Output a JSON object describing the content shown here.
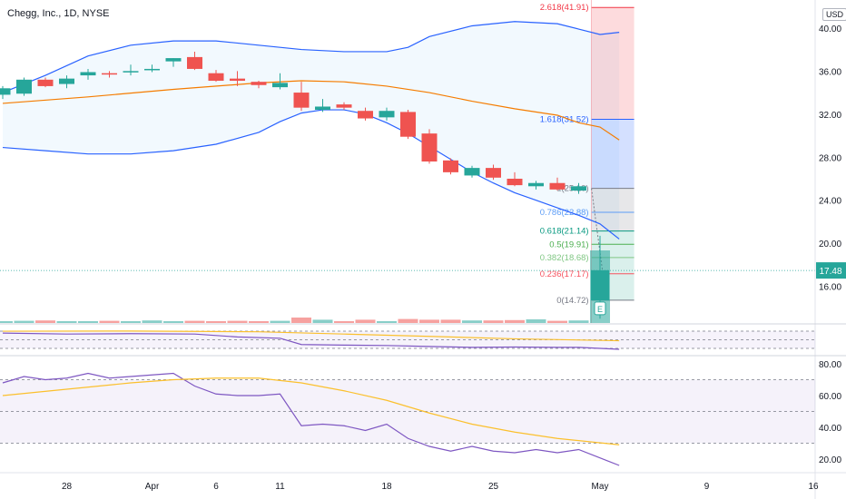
{
  "header": {
    "title": "Chegg, Inc., 1D, NYSE",
    "currency": "USD"
  },
  "colors": {
    "up": "#26a69a",
    "down": "#ef5350",
    "bb": "#2962ff",
    "basis": "#f57c00",
    "rsi": "#7e57c2",
    "rsi_ma": "#fbc02d"
  },
  "chart_data": [
    {
      "type": "candlestick",
      "panel": "price",
      "title": "Chegg, Inc., 1D, NYSE",
      "y_ticks": [
        16.0,
        20.0,
        24.0,
        28.0,
        32.0,
        36.0,
        40.0
      ],
      "ylim": [
        12.6,
        42.6
      ],
      "x_ticks": [
        {
          "label": "28",
          "day": 3
        },
        {
          "label": "Apr",
          "day": 7
        },
        {
          "label": "6",
          "day": 10
        },
        {
          "label": "11",
          "day": 13
        },
        {
          "label": "18",
          "day": 18
        },
        {
          "label": "25",
          "day": 23
        },
        {
          "label": "May",
          "day": 28
        },
        {
          "label": "9",
          "day": 33
        },
        {
          "label": "16",
          "day": 38
        }
      ],
      "xlim": [
        0,
        40
      ],
      "candles": [
        {
          "day": 0,
          "o": 33.8,
          "h": 34.6,
          "l": 33.4,
          "c": 34.4
        },
        {
          "day": 1,
          "o": 33.9,
          "h": 35.4,
          "l": 33.7,
          "c": 35.2
        },
        {
          "day": 2,
          "o": 35.2,
          "h": 35.4,
          "l": 34.5,
          "c": 34.6
        },
        {
          "day": 3,
          "o": 34.8,
          "h": 35.6,
          "l": 34.4,
          "c": 35.3
        },
        {
          "day": 4,
          "o": 35.6,
          "h": 36.2,
          "l": 35.2,
          "c": 35.9
        },
        {
          "day": 5,
          "o": 35.8,
          "h": 36.0,
          "l": 35.4,
          "c": 35.7
        },
        {
          "day": 6,
          "o": 35.9,
          "h": 36.6,
          "l": 35.6,
          "c": 36.0
        },
        {
          "day": 7,
          "o": 36.1,
          "h": 36.6,
          "l": 35.9,
          "c": 36.2
        },
        {
          "day": 8,
          "o": 36.9,
          "h": 37.2,
          "l": 36.4,
          "c": 37.2
        },
        {
          "day": 9,
          "o": 37.3,
          "h": 37.8,
          "l": 36.1,
          "c": 36.2
        },
        {
          "day": 10,
          "o": 35.8,
          "h": 36.1,
          "l": 35.0,
          "c": 35.1
        },
        {
          "day": 11,
          "o": 35.3,
          "h": 36.0,
          "l": 34.6,
          "c": 35.1
        },
        {
          "day": 12,
          "o": 35.0,
          "h": 35.1,
          "l": 34.4,
          "c": 34.7
        },
        {
          "day": 13,
          "o": 34.5,
          "h": 35.8,
          "l": 34.3,
          "c": 34.9
        },
        {
          "day": 14,
          "o": 34.0,
          "h": 35.0,
          "l": 32.3,
          "c": 32.6
        },
        {
          "day": 15,
          "o": 32.4,
          "h": 33.4,
          "l": 32.2,
          "c": 32.7
        },
        {
          "day": 16,
          "o": 32.9,
          "h": 33.1,
          "l": 32.4,
          "c": 32.6
        },
        {
          "day": 17,
          "o": 32.3,
          "h": 32.6,
          "l": 31.4,
          "c": 31.6
        },
        {
          "day": 18,
          "o": 31.7,
          "h": 32.6,
          "l": 31.4,
          "c": 32.3
        },
        {
          "day": 19,
          "o": 32.2,
          "h": 32.4,
          "l": 29.7,
          "c": 29.9
        },
        {
          "day": 20,
          "o": 30.2,
          "h": 30.6,
          "l": 27.4,
          "c": 27.6
        },
        {
          "day": 21,
          "o": 27.7,
          "h": 27.9,
          "l": 26.4,
          "c": 26.6
        },
        {
          "day": 22,
          "o": 26.3,
          "h": 27.2,
          "l": 26.1,
          "c": 27.0
        },
        {
          "day": 23,
          "o": 27.0,
          "h": 27.3,
          "l": 25.9,
          "c": 26.1
        },
        {
          "day": 24,
          "o": 26.0,
          "h": 26.6,
          "l": 25.3,
          "c": 25.4
        },
        {
          "day": 25,
          "o": 25.3,
          "h": 25.8,
          "l": 25.0,
          "c": 25.6
        },
        {
          "day": 26,
          "o": 25.6,
          "h": 26.1,
          "l": 24.9,
          "c": 25.0
        },
        {
          "day": 27,
          "o": 24.9,
          "h": 25.6,
          "l": 24.6,
          "c": 25.3
        },
        {
          "day": 28,
          "o": 14.7,
          "h": 20.7,
          "l": 13.0,
          "c": 17.5
        }
      ],
      "bollinger_upper": [
        [
          0,
          34.0
        ],
        [
          2,
          35.6
        ],
        [
          4,
          37.4
        ],
        [
          6,
          38.4
        ],
        [
          8,
          38.8
        ],
        [
          10,
          38.8
        ],
        [
          12,
          38.4
        ],
        [
          14,
          38.0
        ],
        [
          16,
          37.8
        ],
        [
          18,
          37.8
        ],
        [
          19,
          38.2
        ],
        [
          20,
          39.2
        ],
        [
          22,
          40.2
        ],
        [
          24,
          40.6
        ],
        [
          26,
          40.4
        ],
        [
          27,
          39.9
        ],
        [
          28,
          39.4
        ],
        [
          28.9,
          39.6
        ]
      ],
      "bollinger_basis": [
        [
          0,
          33.0
        ],
        [
          4,
          33.6
        ],
        [
          8,
          34.3
        ],
        [
          12,
          34.9
        ],
        [
          14,
          35.1
        ],
        [
          16,
          35.0
        ],
        [
          18,
          34.6
        ],
        [
          20,
          34.0
        ],
        [
          22,
          33.2
        ],
        [
          24,
          32.5
        ],
        [
          26,
          31.9
        ],
        [
          27,
          31.2
        ],
        [
          28,
          30.8
        ],
        [
          28.9,
          29.6
        ]
      ],
      "bollinger_lower": [
        [
          0,
          28.9
        ],
        [
          2,
          28.6
        ],
        [
          4,
          28.3
        ],
        [
          6,
          28.3
        ],
        [
          8,
          28.6
        ],
        [
          10,
          29.2
        ],
        [
          12,
          30.3
        ],
        [
          13,
          31.3
        ],
        [
          14,
          32.1
        ],
        [
          15,
          32.4
        ],
        [
          16,
          32.4
        ],
        [
          17,
          32.0
        ],
        [
          18,
          31.2
        ],
        [
          19,
          30.2
        ],
        [
          20,
          29.0
        ],
        [
          21,
          27.8
        ],
        [
          22,
          26.6
        ],
        [
          23,
          25.6
        ],
        [
          24,
          24.7
        ],
        [
          25,
          24.0
        ],
        [
          26,
          23.3
        ],
        [
          27,
          22.6
        ],
        [
          28,
          21.8
        ],
        [
          28.9,
          20.4
        ]
      ],
      "fib_levels": [
        {
          "ratio": "2.618",
          "price": 41.91,
          "label": "2.618(41.91)",
          "color": "#f23645"
        },
        {
          "ratio": "1.618",
          "price": 31.52,
          "label": "1.618(31.52)",
          "color": "#2962ff"
        },
        {
          "ratio": "1",
          "price": 25.1,
          "label": "1(25.10)",
          "color": "#787b86"
        },
        {
          "ratio": "0.786",
          "price": 22.88,
          "label": "0.786(22.88)",
          "color": "#5b9cf6"
        },
        {
          "ratio": "0.618",
          "price": 21.14,
          "label": "0.618(21.14)",
          "color": "#089981"
        },
        {
          "ratio": "0.5",
          "price": 19.91,
          "label": "0.5(19.91)",
          "color": "#4caf50"
        },
        {
          "ratio": "0.382",
          "price": 18.68,
          "label": "0.382(18.68)",
          "color": "#81c784"
        },
        {
          "ratio": "0.236",
          "price": 17.17,
          "label": "0.236(17.17)",
          "color": "#f7525f"
        },
        {
          "ratio": "0",
          "price": 14.72,
          "label": "0(14.72)",
          "color": "#787b86"
        }
      ],
      "last_price": "17.48",
      "earnings_marker": "E",
      "volume": [
        0.5,
        0.6,
        0.7,
        0.5,
        0.5,
        0.6,
        0.5,
        0.7,
        0.5,
        0.6,
        0.5,
        0.6,
        0.5,
        0.6,
        1.5,
        0.9,
        0.5,
        0.9,
        0.5,
        1.1,
        0.9,
        0.9,
        0.7,
        0.7,
        0.8,
        1.0,
        0.6,
        0.7,
        20.0
      ]
    },
    {
      "type": "line",
      "panel": "upper oscillator",
      "series": [
        {
          "color": "#7e57c2",
          "points": [
            [
              0,
              0.15
            ],
            [
              3,
              0.2
            ],
            [
              6,
              0.18
            ],
            [
              9,
              0.2
            ],
            [
              11,
              0.35
            ],
            [
              13,
              0.42
            ],
            [
              14,
              0.75
            ],
            [
              16,
              0.78
            ],
            [
              18,
              0.8
            ],
            [
              20,
              0.85
            ],
            [
              22,
              0.9
            ],
            [
              24,
              0.88
            ],
            [
              26,
              0.9
            ],
            [
              27,
              0.9
            ],
            [
              28.9,
              1.0
            ]
          ]
        },
        {
          "color": "#fbc02d",
          "points": [
            [
              0,
              0.05
            ],
            [
              6,
              0.04
            ],
            [
              12,
              0.08
            ],
            [
              16,
              0.2
            ],
            [
              20,
              0.32
            ],
            [
              24,
              0.45
            ],
            [
              28.9,
              0.55
            ]
          ]
        }
      ]
    },
    {
      "type": "line",
      "panel": "RSI",
      "y_ticks": [
        20.0,
        40.0,
        60.0,
        80.0
      ],
      "ylim": [
        12.0,
        84.0
      ],
      "bands": [
        30,
        50,
        70
      ],
      "series": [
        {
          "color": "#7e57c2",
          "points": [
            [
              0,
              68
            ],
            [
              1,
              72
            ],
            [
              2,
              70
            ],
            [
              3,
              71
            ],
            [
              4,
              74
            ],
            [
              5,
              71
            ],
            [
              6,
              72
            ],
            [
              7,
              73
            ],
            [
              8,
              74
            ],
            [
              9,
              66
            ],
            [
              10,
              61
            ],
            [
              11,
              60
            ],
            [
              12,
              60
            ],
            [
              13,
              61
            ],
            [
              14,
              41
            ],
            [
              15,
              42
            ],
            [
              16,
              41
            ],
            [
              17,
              38
            ],
            [
              18,
              42
            ],
            [
              19,
              33
            ],
            [
              20,
              28
            ],
            [
              21,
              25
            ],
            [
              22,
              28
            ],
            [
              23,
              25
            ],
            [
              24,
              24
            ],
            [
              25,
              26
            ],
            [
              26,
              24
            ],
            [
              27,
              26
            ],
            [
              28.9,
              16
            ]
          ]
        },
        {
          "color": "#fbc02d",
          "points": [
            [
              0,
              60
            ],
            [
              3,
              64
            ],
            [
              6,
              68
            ],
            [
              8,
              70
            ],
            [
              10,
              71
            ],
            [
              12,
              71
            ],
            [
              14,
              68
            ],
            [
              16,
              63
            ],
            [
              18,
              57
            ],
            [
              20,
              49
            ],
            [
              22,
              42
            ],
            [
              24,
              37
            ],
            [
              26,
              33
            ],
            [
              28.9,
              29
            ]
          ]
        }
      ]
    }
  ]
}
